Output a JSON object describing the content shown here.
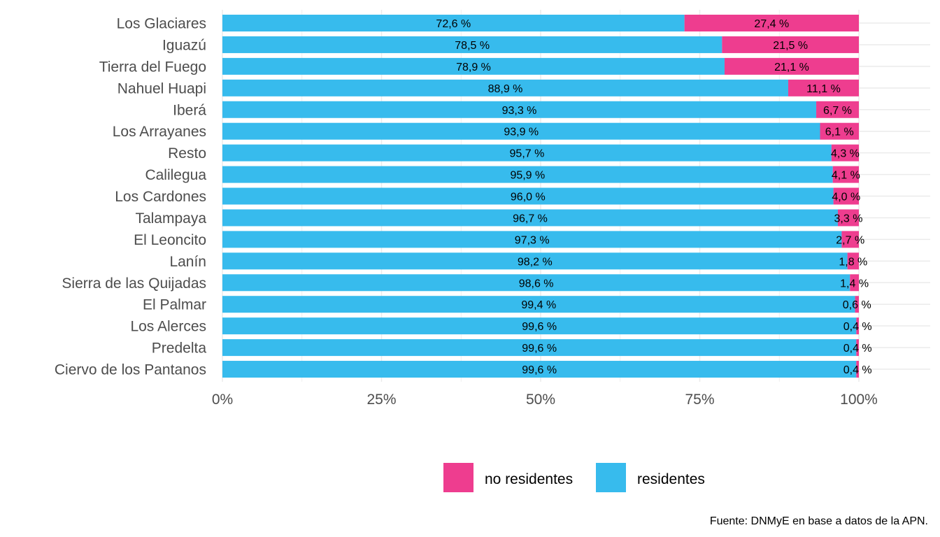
{
  "chart_data": {
    "type": "bar",
    "orientation": "horizontal",
    "stacked": "percent",
    "categories": [
      "Los Glaciares",
      "Iguazú",
      "Tierra del Fuego",
      "Nahuel Huapi",
      "Iberá",
      "Los Arrayanes",
      "Resto",
      "Calilegua",
      "Los Cardones",
      "Talampaya",
      "El Leoncito",
      "Lanín",
      "Sierra de las Quijadas",
      "El Palmar",
      "Los Alerces",
      "Predelta",
      "Ciervo de los Pantanos"
    ],
    "series": [
      {
        "name": "residentes",
        "color": "#37BBED",
        "values": [
          72.6,
          78.5,
          78.9,
          88.9,
          93.3,
          93.9,
          95.7,
          95.9,
          96.0,
          96.7,
          97.3,
          98.2,
          98.6,
          99.4,
          99.6,
          99.6,
          99.6
        ],
        "labels": [
          "72,6 %",
          "78,5 %",
          "78,9 %",
          "88,9 %",
          "93,3 %",
          "93,9 %",
          "95,7 %",
          "95,9 %",
          "96,0 %",
          "96,7 %",
          "97,3 %",
          "98,2 %",
          "98,6 %",
          "99,4 %",
          "99,6 %",
          "99,6 %",
          "99,6 %"
        ]
      },
      {
        "name": "no residentes",
        "color": "#EE3D8F",
        "values": [
          27.4,
          21.5,
          21.1,
          11.1,
          6.7,
          6.1,
          4.3,
          4.1,
          4.0,
          3.3,
          2.7,
          1.8,
          1.4,
          0.6,
          0.4,
          0.4,
          0.4
        ],
        "labels": [
          "27,4 %",
          "21,5 %",
          "21,1 %",
          "11,1 %",
          "6,7 %",
          "6,1 %",
          "4,3 %",
          "4,1 %",
          "4,0 %",
          "3,3 %",
          "2,7 %",
          "1,8 %",
          "1,4 %",
          "0,6 %",
          "0,4 %",
          "0,4 %",
          "0,4 %"
        ]
      }
    ],
    "xlim": [
      0,
      100
    ],
    "x_ticks": [
      0,
      25,
      50,
      75,
      100
    ],
    "x_tick_labels": [
      "0%",
      "25%",
      "50%",
      "75%",
      "100%"
    ],
    "grid": true,
    "legend": {
      "position": "bottom",
      "entries": [
        {
          "label": "no residentes",
          "color": "#EE3D8F"
        },
        {
          "label": "residentes",
          "color": "#37BBED"
        }
      ]
    },
    "title": "",
    "xlabel": "",
    "ylabel": "",
    "caption": "Fuente: DNMyE en base a datos de la APN."
  }
}
